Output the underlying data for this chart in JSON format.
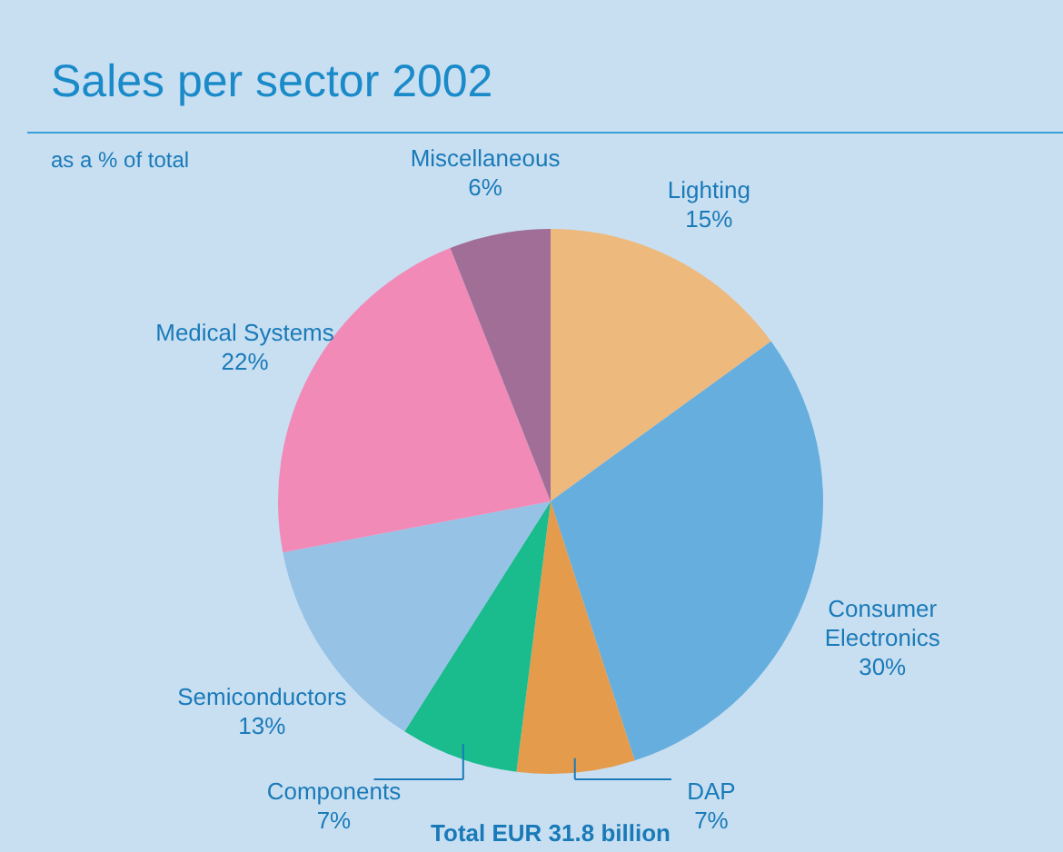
{
  "chart_data": {
    "type": "pie",
    "title": "Sales per sector 2002",
    "subtitle": "as a % of total",
    "categories": [
      "Lighting",
      "Consumer Electronics",
      "DAP",
      "Components",
      "Semiconductors",
      "Medical Systems",
      "Miscellaneous"
    ],
    "values": [
      15,
      30,
      7,
      7,
      13,
      22,
      6
    ],
    "value_labels": [
      "15%",
      "30%",
      "7%",
      "7%",
      "13%",
      "22%",
      "6%"
    ],
    "colors": [
      "#edb97c",
      "#66aede",
      "#e59b4c",
      "#1abb8c",
      "#96c2e5",
      "#f28ab8",
      "#a06e96"
    ],
    "annotations": [
      "Total EUR 31.8 billion"
    ]
  }
}
